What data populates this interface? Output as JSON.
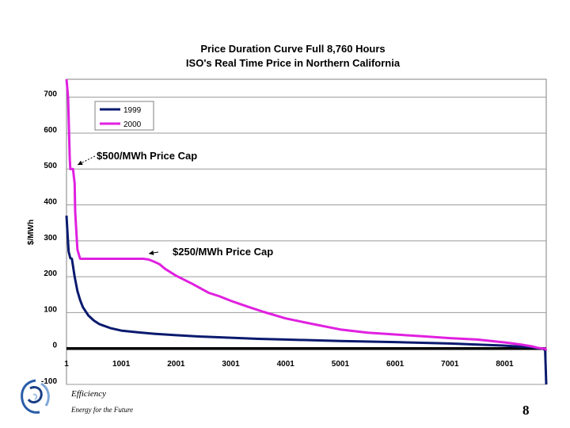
{
  "chart_data": {
    "type": "line",
    "title": "Price Duration Curve Full 8,760 Hours",
    "subtitle": "ISO's Real Time Price in Northern California",
    "xlabel": "",
    "ylabel": "$/MWh",
    "xlim": [
      1,
      8760
    ],
    "ylim": [
      -100,
      750
    ],
    "x_ticks": [
      "1",
      "1001",
      "2001",
      "3001",
      "4001",
      "5001",
      "6001",
      "7001",
      "8001"
    ],
    "y_ticks": [
      "-100",
      "0",
      "100",
      "200",
      "300",
      "400",
      "500",
      "600",
      "700"
    ],
    "grid": true,
    "legend": "top-left",
    "series": [
      {
        "name": "1999",
        "color": "#0a1a6e",
        "x": [
          1,
          20,
          40,
          70,
          100,
          150,
          200,
          250,
          300,
          400,
          500,
          600,
          800,
          1000,
          1300,
          1600,
          2000,
          2500,
          3000,
          3500,
          4000,
          5000,
          6000,
          7000,
          7500,
          8000,
          8300,
          8500,
          8600,
          8700,
          8740,
          8760
        ],
        "y": [
          370,
          320,
          270,
          252,
          250,
          200,
          160,
          135,
          115,
          92,
          78,
          68,
          57,
          50,
          45,
          41,
          37,
          33,
          30,
          27,
          25,
          21,
          18,
          14,
          11,
          8,
          5,
          3,
          1,
          0,
          -5,
          -100
        ]
      },
      {
        "name": "2000",
        "color": "#e020e0",
        "x": [
          1,
          30,
          60,
          70,
          120,
          150,
          160,
          200,
          250,
          1000,
          1400,
          1500,
          1600,
          1700,
          1800,
          2000,
          2300,
          2600,
          2800,
          3000,
          3300,
          3600,
          4000,
          4500,
          5000,
          5500,
          6000,
          6500,
          7000,
          7500,
          8000,
          8300,
          8500,
          8600,
          8700,
          8740,
          8760
        ],
        "y": [
          750,
          700,
          530,
          500,
          500,
          460,
          380,
          275,
          250,
          250,
          250,
          248,
          242,
          235,
          222,
          203,
          180,
          155,
          145,
          133,
          117,
          102,
          84,
          68,
          53,
          44,
          39,
          34,
          29,
          25,
          17,
          11,
          6,
          2,
          0,
          0,
          -5
        ]
      }
    ],
    "annotations": [
      {
        "text": "$500/MWh Price Cap",
        "x": 100,
        "y": 500
      },
      {
        "text": "$250/MWh Price Cap",
        "x": 1750,
        "y": 250
      }
    ]
  },
  "footer": {
    "tagline": "Efficiency",
    "subtagline": "Energy for the Future",
    "page_number": "8"
  }
}
